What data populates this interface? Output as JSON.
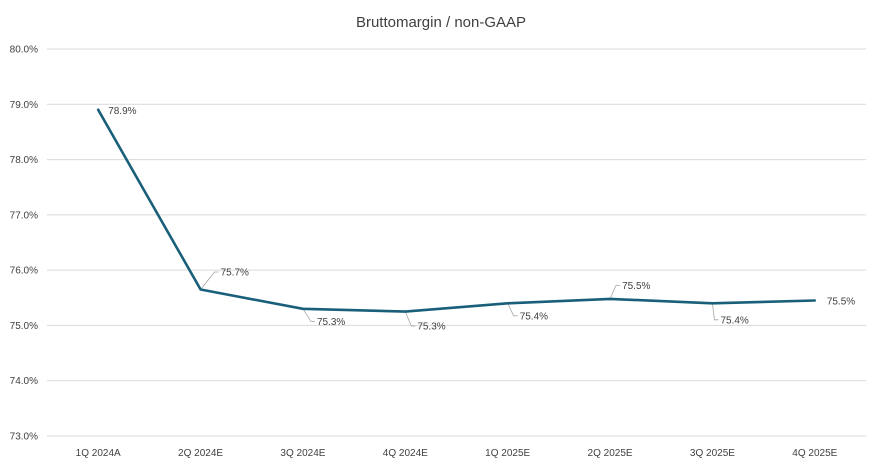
{
  "chart_data": {
    "type": "line",
    "title": "Bruttomargin / non-GAAP",
    "xlabel": "",
    "ylabel": "",
    "categories": [
      "1Q 2024A",
      "2Q 2024E",
      "3Q 2024E",
      "4Q 2024E",
      "1Q 2025E",
      "2Q 2025E",
      "3Q 2025E",
      "4Q 2025E"
    ],
    "series": [
      {
        "values": [
          78.9,
          75.65,
          75.3,
          75.25,
          75.4,
          75.48,
          75.4,
          75.45
        ],
        "data_labels": [
          "78.9%",
          "75.7%",
          "75.3%",
          "75.3%",
          "75.4%",
          "75.5%",
          "75.4%",
          "75.5%"
        ],
        "color": "#1a5f7a"
      }
    ],
    "ylim": [
      73.0,
      80.0
    ],
    "y_ticks": [
      "73.0%",
      "74.0%",
      "75.0%",
      "76.0%",
      "77.0%",
      "78.0%",
      "79.0%",
      "80.0%"
    ],
    "grid": true,
    "legend": "none"
  }
}
